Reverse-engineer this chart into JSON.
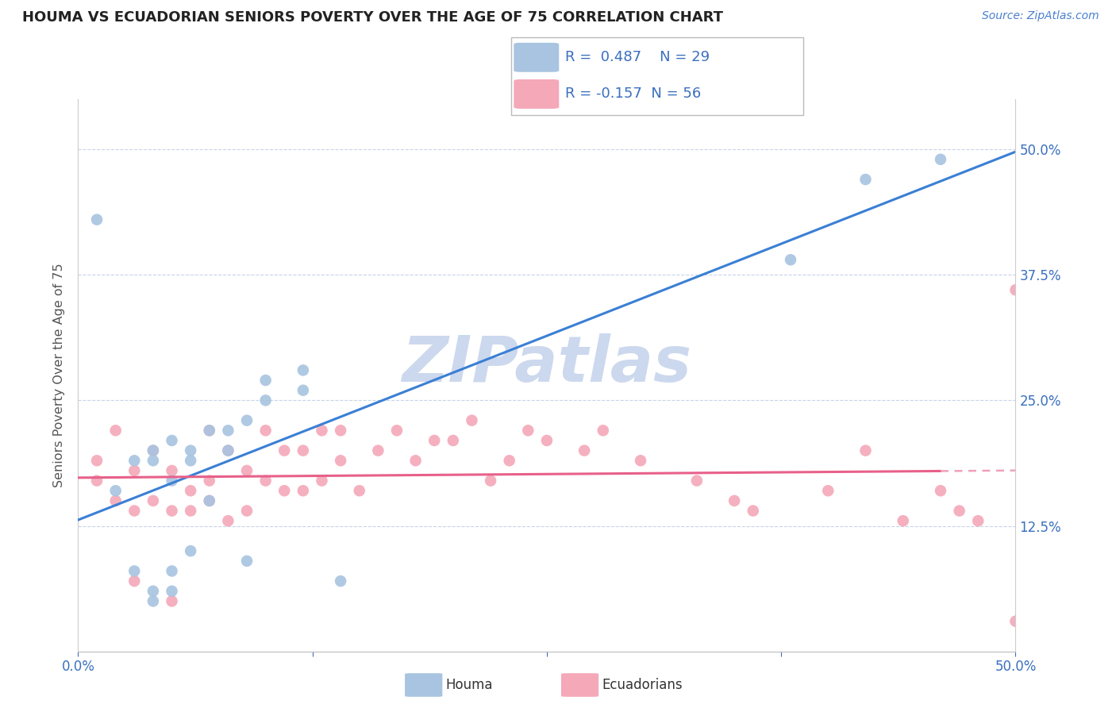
{
  "title": "HOUMA VS ECUADORIAN SENIORS POVERTY OVER THE AGE OF 75 CORRELATION CHART",
  "source_text": "Source: ZipAtlas.com",
  "ylabel": "Seniors Poverty Over the Age of 75",
  "xlim": [
    0.0,
    0.5
  ],
  "ylim": [
    0.0,
    0.55
  ],
  "yticks": [
    0.0,
    0.125,
    0.25,
    0.375,
    0.5
  ],
  "ytick_labels": [
    "",
    "12.5%",
    "25.0%",
    "37.5%",
    "50.0%"
  ],
  "xticks": [
    0.0,
    0.125,
    0.25,
    0.375,
    0.5
  ],
  "xtick_labels": [
    "0.0%",
    "",
    "",
    "",
    "50.0%"
  ],
  "houma_R": 0.487,
  "houma_N": 29,
  "ecuador_R": -0.157,
  "ecuador_N": 56,
  "houma_color": "#a8c4e0",
  "ecuador_color": "#f4a8b8",
  "houma_line_color": "#3a7fd5",
  "ecuador_line_color": "#e8608a",
  "ecuador_line_dashed_color": "#f0a0b8",
  "watermark_color": "#ccd8ee",
  "houma_x": [
    0.01,
    0.02,
    0.03,
    0.03,
    0.04,
    0.04,
    0.04,
    0.04,
    0.05,
    0.05,
    0.05,
    0.05,
    0.06,
    0.06,
    0.06,
    0.07,
    0.07,
    0.08,
    0.08,
    0.09,
    0.09,
    0.1,
    0.1,
    0.12,
    0.12,
    0.14,
    0.38,
    0.42,
    0.46
  ],
  "houma_y": [
    0.43,
    0.16,
    0.08,
    0.19,
    0.05,
    0.06,
    0.19,
    0.2,
    0.06,
    0.08,
    0.17,
    0.21,
    0.1,
    0.19,
    0.2,
    0.15,
    0.22,
    0.2,
    0.22,
    0.09,
    0.23,
    0.25,
    0.27,
    0.26,
    0.28,
    0.07,
    0.39,
    0.47,
    0.49
  ],
  "ecuador_x": [
    0.01,
    0.01,
    0.02,
    0.02,
    0.03,
    0.03,
    0.03,
    0.04,
    0.04,
    0.05,
    0.05,
    0.05,
    0.06,
    0.06,
    0.07,
    0.07,
    0.07,
    0.08,
    0.08,
    0.09,
    0.09,
    0.1,
    0.1,
    0.11,
    0.11,
    0.12,
    0.12,
    0.13,
    0.13,
    0.14,
    0.14,
    0.15,
    0.16,
    0.17,
    0.18,
    0.19,
    0.2,
    0.21,
    0.22,
    0.23,
    0.24,
    0.25,
    0.27,
    0.28,
    0.3,
    0.33,
    0.35,
    0.36,
    0.4,
    0.42,
    0.44,
    0.46,
    0.47,
    0.48,
    0.5,
    0.5
  ],
  "ecuador_y": [
    0.17,
    0.19,
    0.15,
    0.22,
    0.07,
    0.14,
    0.18,
    0.15,
    0.2,
    0.05,
    0.14,
    0.18,
    0.14,
    0.16,
    0.15,
    0.17,
    0.22,
    0.13,
    0.2,
    0.14,
    0.18,
    0.17,
    0.22,
    0.16,
    0.2,
    0.16,
    0.2,
    0.17,
    0.22,
    0.19,
    0.22,
    0.16,
    0.2,
    0.22,
    0.19,
    0.21,
    0.21,
    0.23,
    0.17,
    0.19,
    0.22,
    0.21,
    0.2,
    0.22,
    0.19,
    0.17,
    0.15,
    0.14,
    0.16,
    0.2,
    0.13,
    0.16,
    0.14,
    0.13,
    0.03,
    0.36
  ]
}
